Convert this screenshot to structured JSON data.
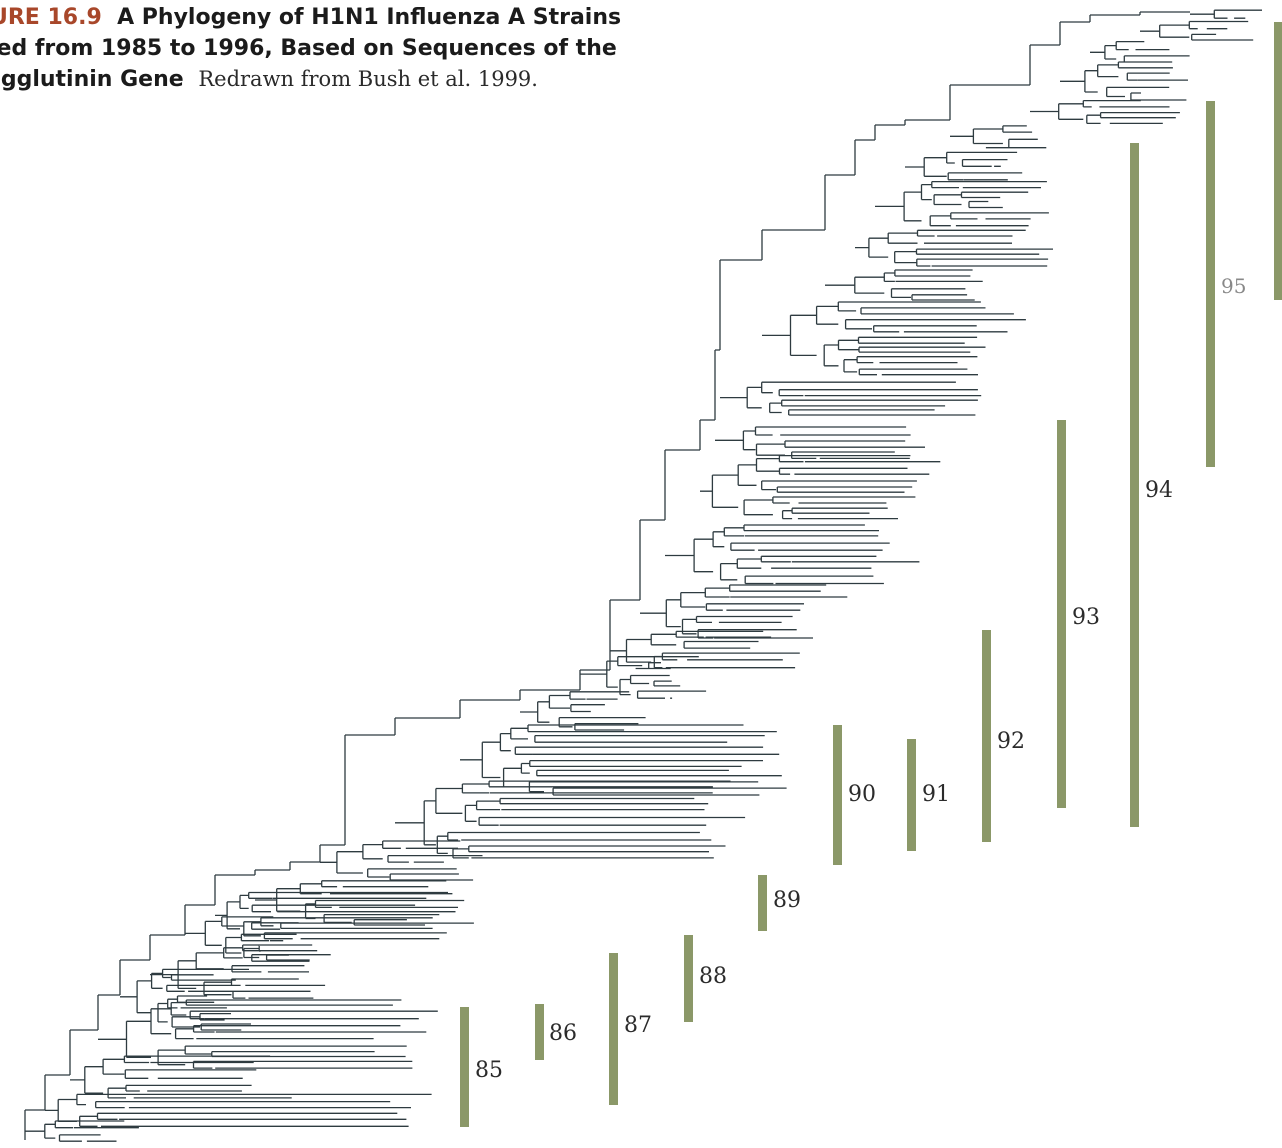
{
  "figure": {
    "label": "URE 16.9",
    "title_line1": "A Phylogeny of H1N1 Influenza A Strains",
    "title_line2": "ted from 1985 to 1996, Based on Sequences of the",
    "title_line3": "agglutinin Gene",
    "credit": "Redrawn from Bush et al. 1999."
  },
  "colors": {
    "bar": "#8b9868",
    "tree": "#2e3b40",
    "figure_label": "#a8472a"
  },
  "year_markers": [
    {
      "year": "85",
      "value": 85
    },
    {
      "year": "86",
      "value": 86
    },
    {
      "year": "87",
      "value": 87
    },
    {
      "year": "88",
      "value": 88
    },
    {
      "year": "89",
      "value": 89
    },
    {
      "year": "90",
      "value": 90
    },
    {
      "year": "91",
      "value": 91
    },
    {
      "year": "92",
      "value": 92
    },
    {
      "year": "93",
      "value": 93
    },
    {
      "year": "94",
      "value": 94
    },
    {
      "year": "95",
      "value": 95
    }
  ]
}
